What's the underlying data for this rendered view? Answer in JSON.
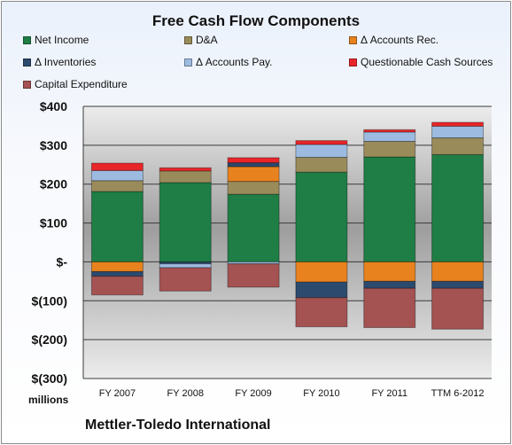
{
  "chart_data": {
    "type": "bar",
    "stacked": true,
    "title": "Free Cash Flow Components",
    "categories": [
      "FY 2007",
      "FY 2008",
      "FY 2009",
      "FY 2010",
      "FY 2011",
      "TTM 6-2012"
    ],
    "ylabel": "millions",
    "ylim": [
      -300,
      400
    ],
    "yticks": [
      400,
      300,
      200,
      100,
      0,
      -100,
      -200,
      -300
    ],
    "ytick_labels": [
      "$400",
      "$300",
      "$200",
      "$100",
      "$-",
      "$(100)",
      "$(200)",
      "$(300)"
    ],
    "grid": true,
    "legend_position": "top",
    "series": [
      {
        "name": "Net Income",
        "color": "#1e7e45",
        "values": [
          181,
          204,
          174,
          231,
          270,
          276
        ]
      },
      {
        "name": "D&A",
        "color": "#9a8b5a",
        "values": [
          28,
          30,
          33,
          38,
          40,
          43
        ]
      },
      {
        "name": "Δ Accounts Rec.",
        "color": "#e8821e",
        "values": [
          -25,
          0,
          38,
          -52,
          -50,
          -50
        ]
      },
      {
        "name": "Δ Inventories",
        "color": "#2b4a6e",
        "values": [
          -12,
          -5,
          10,
          -40,
          -18,
          -18
        ]
      },
      {
        "name": "Δ Accounts Pay.",
        "color": "#9dbbe0",
        "values": [
          26,
          -10,
          -5,
          33,
          24,
          30
        ]
      },
      {
        "name": "Questionable Cash Sources",
        "color": "#e8262a",
        "values": [
          19,
          8,
          13,
          10,
          6,
          10
        ]
      },
      {
        "name": "Capital Expenditure",
        "color": "#a45252",
        "values": [
          -48,
          -60,
          -60,
          -75,
          -101,
          -105
        ]
      }
    ]
  },
  "company": "Mettler-Toledo International"
}
